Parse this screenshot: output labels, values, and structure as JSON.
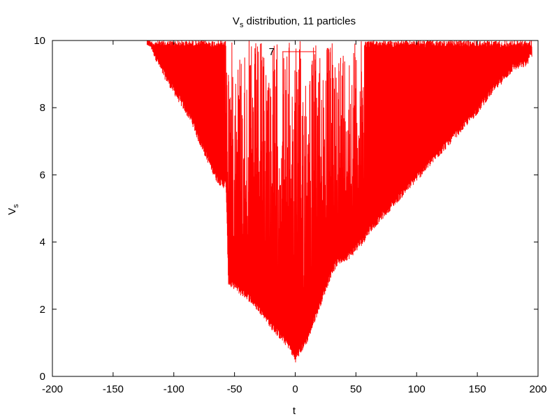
{
  "chart_data": {
    "type": "line",
    "title": {
      "main": "V",
      "sub": "s",
      "rest": " distribution, 11 particles"
    },
    "xlabel": "t",
    "ylabel": {
      "main": "V",
      "sub": "s"
    },
    "xlim": [
      -200,
      200
    ],
    "ylim": [
      0,
      10
    ],
    "xticks": [
      -200,
      -150,
      -100,
      -50,
      0,
      50,
      100,
      150,
      200
    ],
    "yticks": [
      0,
      2,
      4,
      6,
      8,
      10
    ],
    "legend_position": "top-center",
    "series": [
      {
        "name": "7",
        "color": "#ff0000",
        "envelope": {
          "t": [
            -122,
            -110,
            -100,
            -90,
            -85,
            -80,
            -75,
            -70,
            -65,
            -60,
            -57,
            -55,
            -52,
            -50,
            -45,
            -40,
            -35,
            -30,
            -25,
            -20,
            -15,
            -10,
            -5,
            0,
            5,
            10,
            15,
            20,
            25,
            30,
            35,
            40,
            45,
            50,
            55,
            57,
            60,
            70,
            80,
            90,
            100,
            110,
            120,
            130,
            140,
            150,
            160,
            170,
            180,
            190,
            195
          ],
          "upper": [
            10,
            10,
            10,
            10,
            10,
            10,
            10,
            10,
            10,
            10,
            10,
            10,
            10,
            10,
            10,
            10,
            10,
            10,
            10,
            10,
            10,
            10,
            10,
            10,
            10,
            10,
            10,
            10,
            10,
            10,
            10,
            10,
            10,
            10,
            10,
            10,
            10,
            10,
            10,
            10,
            10,
            10,
            10,
            10,
            10,
            10,
            10,
            10,
            10,
            10,
            10
          ],
          "lower": [
            10,
            9.0,
            8.4,
            7.8,
            7.5,
            7.0,
            6.6,
            6.2,
            5.8,
            5.6,
            5.6,
            2.7,
            2.6,
            2.6,
            2.4,
            2.3,
            2.1,
            1.9,
            1.7,
            1.4,
            1.2,
            1.0,
            0.8,
            0.4,
            0.7,
            1.0,
            1.5,
            2.0,
            2.5,
            3.0,
            3.3,
            3.4,
            3.5,
            3.7,
            3.9,
            4.0,
            4.2,
            4.6,
            5.0,
            5.4,
            5.8,
            6.2,
            6.6,
            7.0,
            7.4,
            7.8,
            8.3,
            8.7,
            9.1,
            9.2,
            9.5
          ]
        }
      }
    ]
  }
}
